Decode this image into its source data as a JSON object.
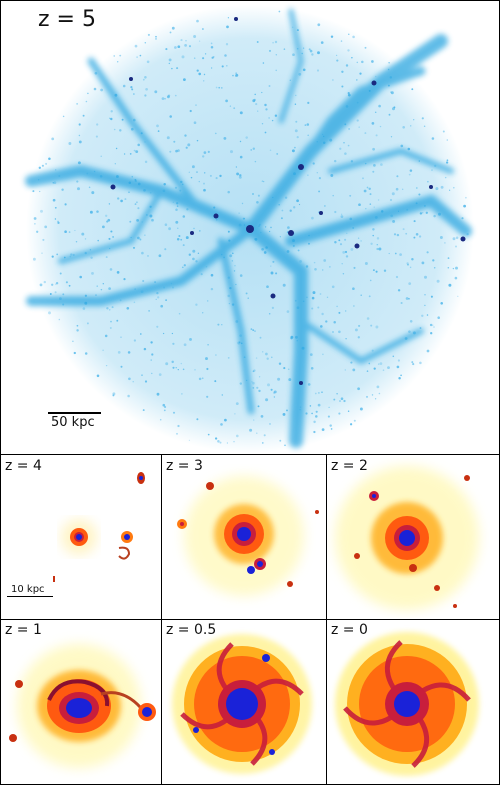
{
  "top": {
    "z_label": "z = 5",
    "scale_label": "50 kpc",
    "color": "#2aa6e0"
  },
  "panels": [
    {
      "z_label": "z = 4",
      "scale_label": "10 kpc"
    },
    {
      "z_label": "z = 3"
    },
    {
      "z_label": "z = 2"
    },
    {
      "z_label": "z = 1"
    },
    {
      "z_label": "z = 0.5"
    },
    {
      "z_label": "z = 0"
    }
  ],
  "colors": {
    "core": "#1a22d8",
    "inner": "#c81e3c",
    "mid": "#ff5a10",
    "outer": "#ffc020",
    "halo": "#fff080",
    "filament": "#3fb0e8"
  }
}
